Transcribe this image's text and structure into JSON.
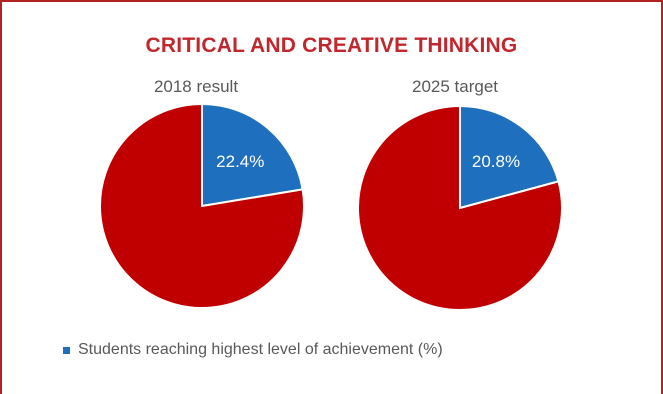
{
  "title": "CRITICAL AND CREATIVE THINKING",
  "chart_data": [
    {
      "type": "pie",
      "title": "2018 result",
      "slices": [
        {
          "name": "Students reaching highest level of achievement (%)",
          "value": 22.4,
          "label": "22.4%",
          "color": "#1f6fbf"
        },
        {
          "name": "",
          "value": 77.6,
          "label": "",
          "color": "#c00000"
        }
      ]
    },
    {
      "type": "pie",
      "title": "2025 target",
      "slices": [
        {
          "name": "Students reaching highest level of achievement (%)",
          "value": 20.8,
          "label": "20.8%",
          "color": "#1f6fbf"
        },
        {
          "name": "",
          "value": 79.2,
          "label": "",
          "color": "#c00000"
        }
      ]
    }
  ],
  "legend": {
    "label": "Students reaching highest level of achievement (%)",
    "color": "#1f6fbf"
  }
}
